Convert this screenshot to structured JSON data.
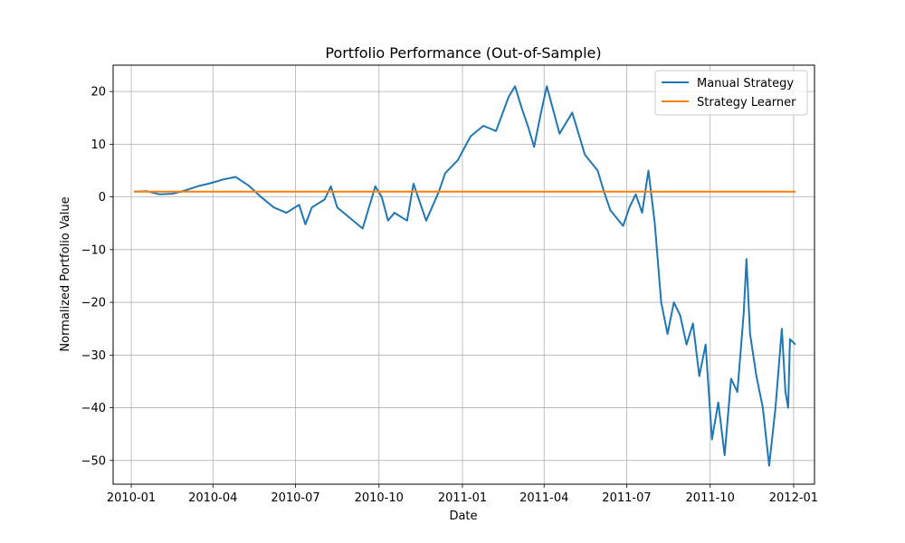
{
  "chart_data": {
    "type": "line",
    "title": "Portfolio Performance (Out-of-Sample)",
    "xlabel": "Date",
    "ylabel": "Normalized Portfolio Value",
    "xlim": [
      "2009-12-12",
      "2012-01-24"
    ],
    "ylim": [
      -54.5,
      25.0
    ],
    "x_ticks": [
      "2010-01",
      "2010-04",
      "2010-07",
      "2010-10",
      "2011-01",
      "2011-04",
      "2011-07",
      "2011-10",
      "2012-01"
    ],
    "y_ticks": [
      20,
      10,
      0,
      -10,
      -20,
      -30,
      -40,
      -50
    ],
    "y_tick_labels": [
      "20",
      "10",
      "0",
      "−10",
      "−20",
      "−30",
      "−40",
      "−50"
    ],
    "grid": true,
    "legend_position": "top-right",
    "series": [
      {
        "name": "Manual Strategy",
        "color": "#1f77b4",
        "points": [
          [
            "2010-01-04",
            1.0
          ],
          [
            "2010-01-18",
            1.1
          ],
          [
            "2010-02-01",
            0.5
          ],
          [
            "2010-02-15",
            0.6
          ],
          [
            "2010-03-01",
            1.2
          ],
          [
            "2010-03-15",
            2.0
          ],
          [
            "2010-03-29",
            2.6
          ],
          [
            "2010-04-12",
            3.3
          ],
          [
            "2010-04-26",
            3.8
          ],
          [
            "2010-05-10",
            2.2
          ],
          [
            "2010-05-24",
            0.0
          ],
          [
            "2010-06-07",
            -2.0
          ],
          [
            "2010-06-21",
            -3.0
          ],
          [
            "2010-07-05",
            -1.5
          ],
          [
            "2010-07-12",
            -5.2
          ],
          [
            "2010-07-19",
            -2.0
          ],
          [
            "2010-08-02",
            -0.5
          ],
          [
            "2010-08-09",
            2.0
          ],
          [
            "2010-08-16",
            -2.0
          ],
          [
            "2010-08-30",
            -4.0
          ],
          [
            "2010-09-13",
            -6.0
          ],
          [
            "2010-09-20",
            -2.0
          ],
          [
            "2010-09-27",
            2.0
          ],
          [
            "2010-10-04",
            0.0
          ],
          [
            "2010-10-11",
            -4.5
          ],
          [
            "2010-10-18",
            -3.0
          ],
          [
            "2010-11-01",
            -4.5
          ],
          [
            "2010-11-08",
            2.5
          ],
          [
            "2010-11-22",
            -4.5
          ],
          [
            "2010-12-06",
            1.0
          ],
          [
            "2010-12-13",
            4.5
          ],
          [
            "2010-12-27",
            7.0
          ],
          [
            "2011-01-10",
            11.5
          ],
          [
            "2011-01-24",
            13.5
          ],
          [
            "2011-02-07",
            12.5
          ],
          [
            "2011-02-21",
            19.0
          ],
          [
            "2011-02-28",
            21.0
          ],
          [
            "2011-03-07",
            17.0
          ],
          [
            "2011-03-14",
            13.5
          ],
          [
            "2011-03-21",
            9.5
          ],
          [
            "2011-03-28",
            15.5
          ],
          [
            "2011-04-04",
            21.0
          ],
          [
            "2011-04-18",
            12.0
          ],
          [
            "2011-05-02",
            16.0
          ],
          [
            "2011-05-16",
            8.0
          ],
          [
            "2011-05-30",
            5.0
          ],
          [
            "2011-06-06",
            1.0
          ],
          [
            "2011-06-13",
            -2.5
          ],
          [
            "2011-06-27",
            -5.5
          ],
          [
            "2011-07-04",
            -2.0
          ],
          [
            "2011-07-11",
            0.5
          ],
          [
            "2011-07-18",
            -3.0
          ],
          [
            "2011-07-25",
            5.0
          ],
          [
            "2011-08-01",
            -5.0
          ],
          [
            "2011-08-08",
            -20.0
          ],
          [
            "2011-08-15",
            -26.0
          ],
          [
            "2011-08-22",
            -20.0
          ],
          [
            "2011-08-29",
            -22.5
          ],
          [
            "2011-09-05",
            -28.0
          ],
          [
            "2011-09-12",
            -24.0
          ],
          [
            "2011-09-19",
            -34.0
          ],
          [
            "2011-09-26",
            -28.0
          ],
          [
            "2011-10-03",
            -46.0
          ],
          [
            "2011-10-10",
            -39.0
          ],
          [
            "2011-10-17",
            -49.0
          ],
          [
            "2011-10-24",
            -34.5
          ],
          [
            "2011-10-31",
            -37.0
          ],
          [
            "2011-11-07",
            -22.0
          ],
          [
            "2011-11-10",
            -11.8
          ],
          [
            "2011-11-14",
            -26.0
          ],
          [
            "2011-11-21",
            -34.0
          ],
          [
            "2011-11-28",
            -40.0
          ],
          [
            "2011-12-05",
            -51.0
          ],
          [
            "2011-12-12",
            -40.0
          ],
          [
            "2011-12-19",
            -25.0
          ],
          [
            "2011-12-23",
            -37.0
          ],
          [
            "2011-12-26",
            -40.0
          ],
          [
            "2011-12-28",
            -27.0
          ],
          [
            "2012-01-03",
            -28.0
          ]
        ]
      },
      {
        "name": "Strategy Learner",
        "color": "#ff7f0e",
        "points": [
          [
            "2010-01-04",
            1.0
          ],
          [
            "2012-01-03",
            1.0
          ]
        ]
      }
    ]
  }
}
